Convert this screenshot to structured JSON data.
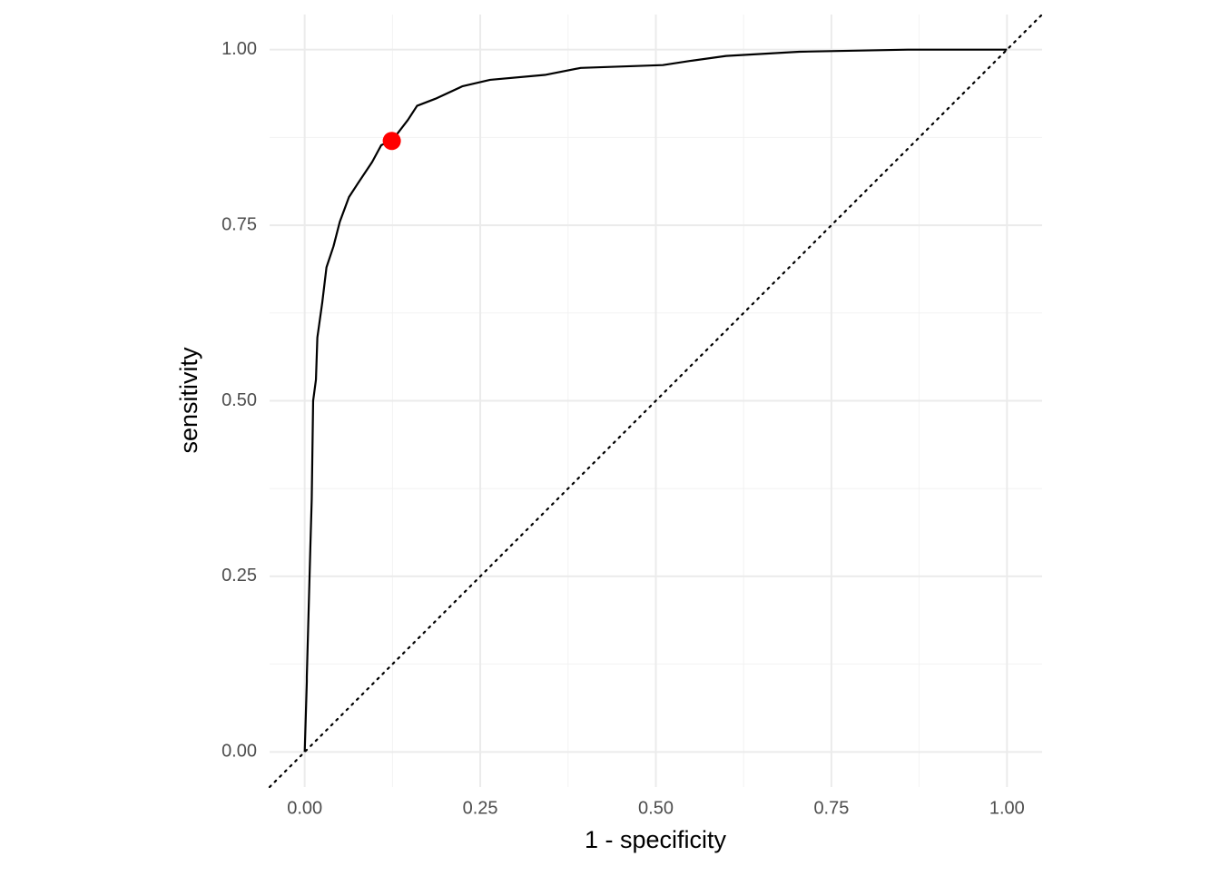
{
  "chart_data": {
    "type": "line",
    "x_label": "1 - specificity",
    "y_label": "sensitivity",
    "xlim": [
      -0.05,
      1.05
    ],
    "ylim": [
      -0.05,
      1.05
    ],
    "xticks": [
      {
        "value": 0,
        "label": "0.00"
      },
      0.25,
      {
        "value": 0.5,
        "label": "0.50"
      },
      0.75,
      {
        "value": 1,
        "label": "1.00"
      }
    ],
    "yticks": [
      {
        "value": 0,
        "label": "0.00"
      },
      0.25,
      {
        "value": 0.5,
        "label": "0.50"
      },
      0.75,
      {
        "value": 1,
        "label": "1.00"
      }
    ],
    "minor_xticks": [
      0.125,
      0.375,
      0.625,
      0.875
    ],
    "minor_yticks": [
      0.125,
      0.375,
      0.625,
      0.875
    ],
    "grid": true,
    "diagonal": true,
    "series": [
      {
        "color": "#000000",
        "x": [
          0,
          0.003,
          0.003,
          0.008,
          0.01,
          0.012,
          0.016,
          0.018,
          0.025,
          0.031,
          0.041,
          0.05,
          0.063,
          0.076,
          0.096,
          0.109,
          0.124,
          0.147,
          0.16,
          0.186,
          0.225,
          0.264,
          0.342,
          0.393,
          0.51,
          0.549,
          0.6,
          0.704,
          0.859,
          1
        ],
        "values": [
          0,
          0.1,
          0.107,
          0.29,
          0.36,
          0.5,
          0.53,
          0.59,
          0.64,
          0.69,
          0.72,
          0.755,
          0.79,
          0.81,
          0.84,
          0.864,
          0.87,
          0.9,
          0.92,
          0.93,
          0.948,
          0.957,
          0.964,
          0.974,
          0.978,
          0.984,
          0.991,
          0.997,
          1.0,
          1.0
        ]
      }
    ],
    "points": [
      {
        "x": 0.124,
        "y": 0.87,
        "color": "#ff0000"
      }
    ]
  }
}
